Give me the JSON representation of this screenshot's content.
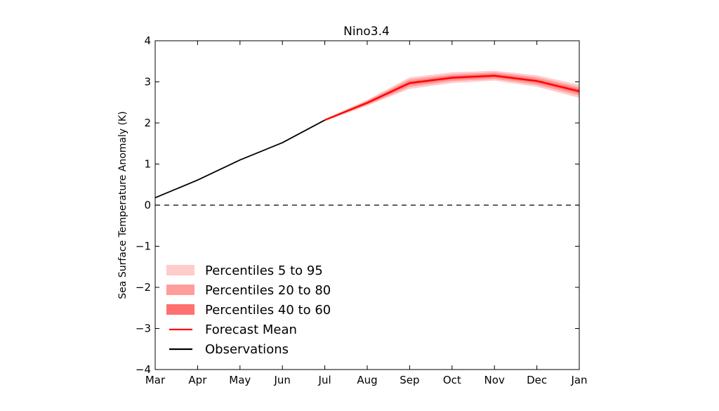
{
  "chart_data": {
    "type": "line",
    "title": "Nino3.4",
    "xlabel": "",
    "ylabel": "Sea Surface Temperature Anomaly (K)",
    "categories": [
      "Mar",
      "Apr",
      "May",
      "Jun",
      "Jul",
      "Aug",
      "Sep",
      "Oct",
      "Nov",
      "Dec",
      "Jan"
    ],
    "ylim": [
      -4,
      4
    ],
    "yticks": [
      "4",
      "3",
      "2",
      "1",
      "0",
      "−1",
      "−2",
      "−3",
      "−4"
    ],
    "ytick_values": [
      4,
      3,
      2,
      1,
      0,
      -1,
      -2,
      -3,
      -4
    ],
    "grid": false,
    "reference_line": {
      "y": 0,
      "style": "dashed"
    },
    "series": [
      {
        "name": "Observations",
        "color": "#000000",
        "x": [
          "Mar",
          "Apr",
          "May",
          "Jun",
          "Jul"
        ],
        "values": [
          0.18,
          0.61,
          1.1,
          1.52,
          2.07
        ]
      },
      {
        "name": "Forecast Mean",
        "color": "#ff0000",
        "x": [
          "Jul",
          "Aug",
          "Sep",
          "Oct",
          "Nov",
          "Dec",
          "Jan"
        ],
        "values": [
          2.07,
          2.49,
          2.97,
          3.1,
          3.15,
          3.02,
          2.77
        ]
      }
    ],
    "bands": [
      {
        "name": "Percentiles 5 to 95",
        "color": "#ffcccc",
        "x": [
          "Jul",
          "Aug",
          "Sep",
          "Oct",
          "Nov",
          "Dec",
          "Jan"
        ],
        "lower": [
          2.04,
          2.42,
          2.83,
          2.97,
          3.03,
          2.88,
          2.61
        ],
        "upper": [
          2.1,
          2.56,
          3.11,
          3.23,
          3.27,
          3.16,
          2.93
        ]
      },
      {
        "name": "Percentiles 20 to 80",
        "color": "#ff9c9c",
        "x": [
          "Jul",
          "Aug",
          "Sep",
          "Oct",
          "Nov",
          "Dec",
          "Jan"
        ],
        "lower": [
          2.05,
          2.44,
          2.88,
          3.02,
          3.07,
          2.93,
          2.67
        ],
        "upper": [
          2.09,
          2.54,
          3.06,
          3.18,
          3.23,
          3.11,
          2.87
        ]
      },
      {
        "name": "Percentiles 40 to 60",
        "color": "#ff7070",
        "x": [
          "Jul",
          "Aug",
          "Sep",
          "Oct",
          "Nov",
          "Dec",
          "Jan"
        ],
        "lower": [
          2.06,
          2.46,
          2.93,
          3.06,
          3.11,
          2.98,
          2.72
        ],
        "upper": [
          2.08,
          2.52,
          3.01,
          3.14,
          3.19,
          3.06,
          2.82
        ]
      }
    ],
    "legend": {
      "position": "lower-left",
      "entries": [
        {
          "label": "Percentiles 5 to 95",
          "kind": "patch",
          "color": "#ffcccc"
        },
        {
          "label": "Percentiles 20 to 80",
          "kind": "patch",
          "color": "#ff9c9c"
        },
        {
          "label": "Percentiles 40 to 60",
          "kind": "patch",
          "color": "#ff7070"
        },
        {
          "label": "Forecast Mean",
          "kind": "line",
          "color": "#ff0000"
        },
        {
          "label": "Observations",
          "kind": "line",
          "color": "#000000"
        }
      ]
    }
  }
}
